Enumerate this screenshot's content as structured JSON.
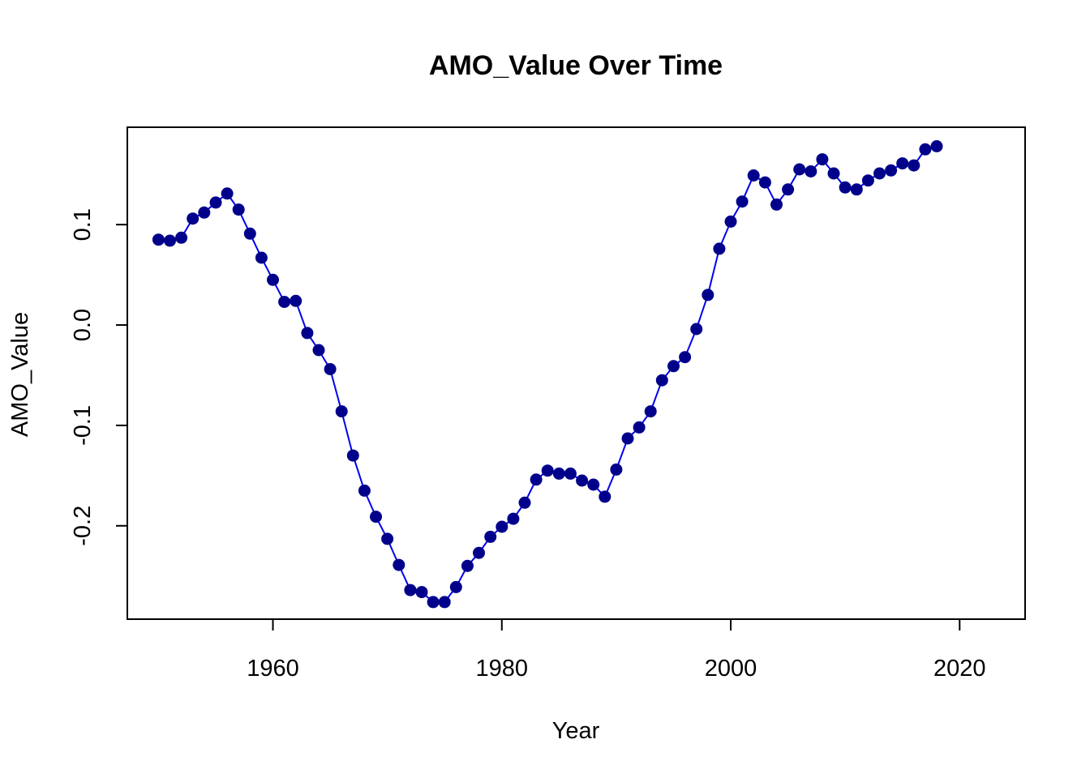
{
  "chart_data": {
    "type": "line",
    "title": "AMO_Value Over Time",
    "xlabel": "Year",
    "ylabel": "AMO_Value",
    "xlim": [
      1947.28,
      2025.72
    ],
    "ylim": [
      -0.293,
      0.197
    ],
    "x_ticks": [
      1960,
      1980,
      2000,
      2020
    ],
    "x_tick_labels": [
      "1960",
      "1980",
      "2000",
      "2020"
    ],
    "y_ticks": [
      -0.2,
      -0.1,
      0.0,
      0.1
    ],
    "y_tick_labels": [
      "-0.2",
      "-0.1",
      "0.0",
      "0.1"
    ],
    "grid": false,
    "legend": "none",
    "line_color": "#0000ee",
    "point_color": "#00008b",
    "x": [
      1950,
      1951,
      1952,
      1953,
      1954,
      1955,
      1956,
      1957,
      1958,
      1959,
      1960,
      1961,
      1962,
      1963,
      1964,
      1965,
      1966,
      1967,
      1968,
      1969,
      1970,
      1971,
      1972,
      1973,
      1974,
      1975,
      1976,
      1977,
      1978,
      1979,
      1980,
      1981,
      1982,
      1983,
      1984,
      1985,
      1986,
      1987,
      1988,
      1989,
      1990,
      1991,
      1992,
      1993,
      1994,
      1995,
      1996,
      1997,
      1998,
      1999,
      2000,
      2001,
      2002,
      2003,
      2004,
      2005,
      2006,
      2007,
      2008,
      2009,
      2010,
      2011,
      2012,
      2013,
      2014,
      2015,
      2016,
      2017,
      2018
    ],
    "y": [
      0.085,
      0.084,
      0.087,
      0.106,
      0.112,
      0.122,
      0.131,
      0.115,
      0.091,
      0.067,
      0.045,
      0.023,
      0.024,
      -0.008,
      -0.025,
      -0.044,
      -0.086,
      -0.13,
      -0.165,
      -0.191,
      -0.213,
      -0.239,
      -0.264,
      -0.266,
      -0.276,
      -0.276,
      -0.261,
      -0.24,
      -0.227,
      -0.211,
      -0.201,
      -0.193,
      -0.177,
      -0.154,
      -0.145,
      -0.148,
      -0.148,
      -0.155,
      -0.159,
      -0.171,
      -0.144,
      -0.113,
      -0.102,
      -0.086,
      -0.055,
      -0.041,
      -0.032,
      -0.004,
      0.03,
      0.076,
      0.103,
      0.123,
      0.149,
      0.142,
      0.12,
      0.135,
      0.155,
      0.153,
      0.165,
      0.151,
      0.137,
      0.135,
      0.144,
      0.151,
      0.154,
      0.161,
      0.159,
      0.175,
      0.178
    ]
  }
}
